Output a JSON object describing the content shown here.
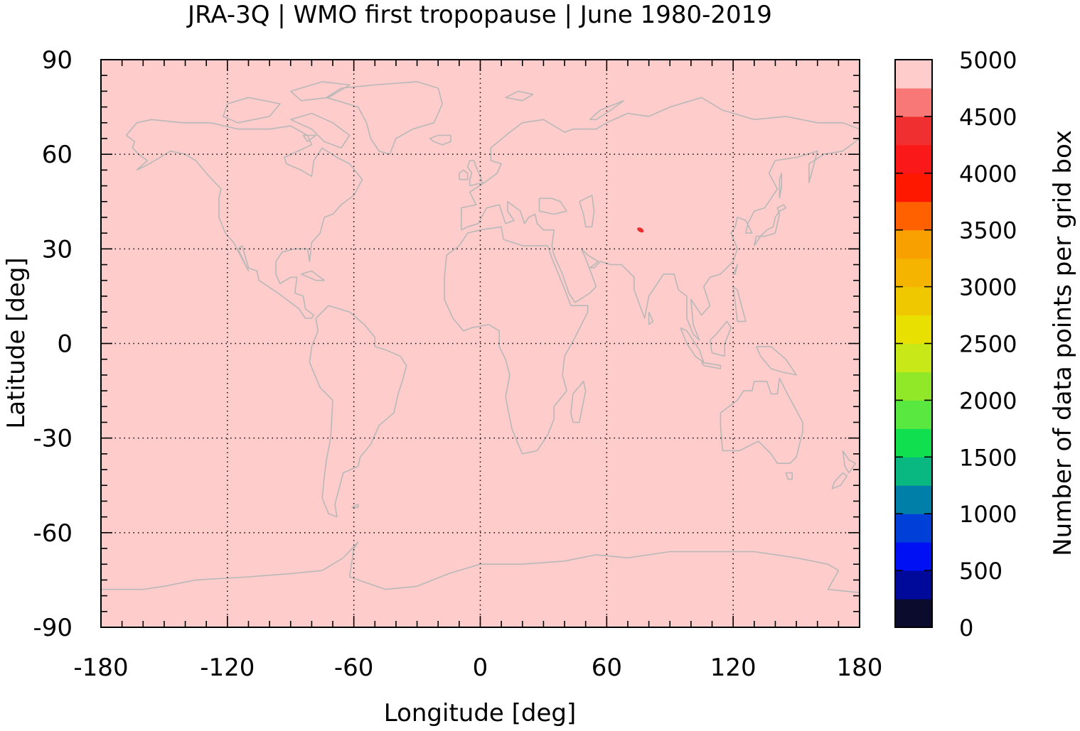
{
  "chart_data": {
    "type": "heatmap",
    "title": "JRA-3Q | WMO first tropopause | June 1980-2019",
    "xlabel": "Longitude [deg]",
    "ylabel": "Latitude [deg]",
    "xlim": [
      -180,
      180
    ],
    "ylim": [
      -90,
      90
    ],
    "xticks": [
      -180,
      -120,
      -60,
      0,
      60,
      120,
      180
    ],
    "xtick_labels": [
      "-180",
      "-120",
      "-60",
      "0",
      "60",
      "120",
      "180"
    ],
    "yticks": [
      90,
      60,
      30,
      0,
      -30,
      -60,
      -90
    ],
    "ytick_labels": [
      "90",
      "60",
      "30",
      "0",
      "-30",
      "-60",
      "-90"
    ],
    "grid": true,
    "field": {
      "dominant_value": 5000,
      "dominant_color": "#ffcccc",
      "anomalies": [
        {
          "lon": 76,
          "lat": 36,
          "value": 4300,
          "color": "#e83030"
        }
      ]
    },
    "colorbar": {
      "label": "Number of data points per grid box",
      "min": 0,
      "max": 5000,
      "ticks": [
        0,
        500,
        1000,
        1500,
        2000,
        2500,
        3000,
        3500,
        4000,
        4500,
        5000
      ],
      "tick_labels": [
        "0",
        "500",
        "1000",
        "1500",
        "2000",
        "2500",
        "3000",
        "3500",
        "4000",
        "4500",
        "5000"
      ],
      "colors": [
        "#0b0b2e",
        "#000a9a",
        "#0010f4",
        "#0040d8",
        "#0080a8",
        "#08b880",
        "#10e050",
        "#58e840",
        "#90e828",
        "#c8e818",
        "#e8e000",
        "#f0c800",
        "#f5b400",
        "#f8a000",
        "#ff6000",
        "#ff1800",
        "#fa1818",
        "#f03030",
        "#f87878",
        "#ffcccc"
      ]
    },
    "coastline_color": "#b8b8b8"
  }
}
